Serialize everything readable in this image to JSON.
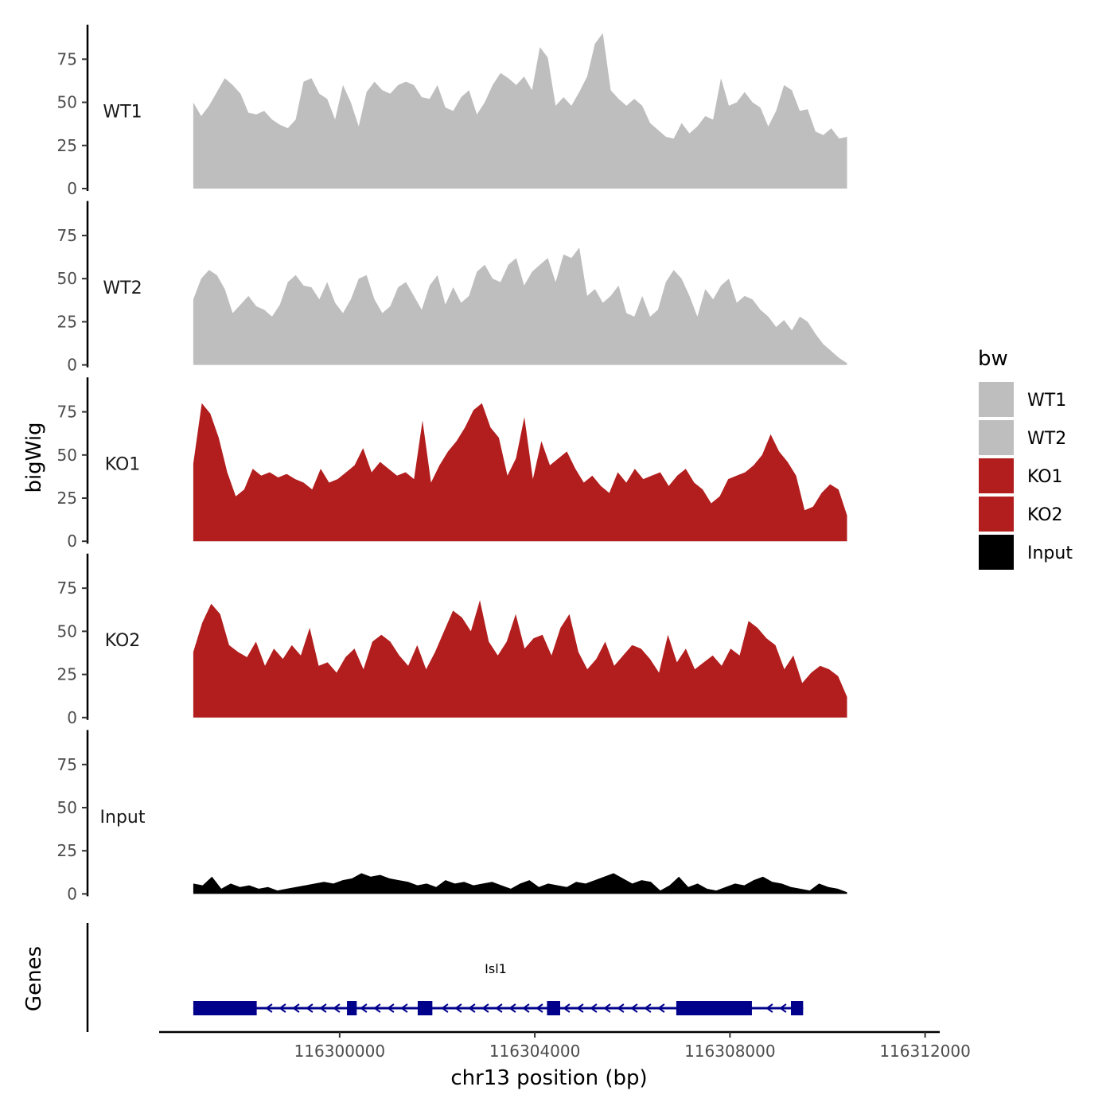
{
  "chart_data": {
    "type": "area",
    "title": "",
    "xlabel": "chr13 position (bp)",
    "ylabel": "bigWig",
    "genes_label": "Genes",
    "xlim": [
      116296300,
      116312300
    ],
    "x_ticks": [
      116300000,
      116304000,
      116308000,
      116312000
    ],
    "x_tick_labels": [
      "116300000",
      "116304000",
      "116308000",
      "116312000"
    ],
    "ylim": [
      0,
      95
    ],
    "y_ticks": [
      0,
      25,
      50,
      75
    ],
    "y_tick_labels": [
      "0",
      "25",
      "50",
      "75"
    ],
    "region": [
      116297000,
      116310400
    ],
    "legend": {
      "title": "bw",
      "entries": [
        {
          "label": "WT1",
          "color": "#BEBEBE"
        },
        {
          "label": "WT2",
          "color": "#BEBEBE"
        },
        {
          "label": "KO1",
          "color": "#B21E1E"
        },
        {
          "label": "KO2",
          "color": "#B21E1E"
        },
        {
          "label": "Input",
          "color": "#000000"
        }
      ]
    },
    "series": [
      {
        "name": "WT1",
        "color": "#BEBEBE",
        "values": [
          50,
          42,
          48,
          56,
          64,
          60,
          55,
          44,
          43,
          45,
          40,
          37,
          35,
          40,
          62,
          64,
          55,
          52,
          40,
          60,
          50,
          36,
          56,
          62,
          57,
          55,
          60,
          62,
          60,
          53,
          52,
          60,
          47,
          45,
          53,
          57,
          43,
          50,
          60,
          67,
          64,
          60,
          65,
          57,
          82,
          76,
          48,
          53,
          48,
          56,
          65,
          84,
          90,
          57,
          52,
          48,
          52,
          48,
          38,
          34,
          30,
          29,
          38,
          32,
          36,
          42,
          40,
          64,
          48,
          50,
          56,
          50,
          47,
          36,
          45,
          60,
          57,
          45,
          46,
          33,
          31,
          35,
          29,
          30
        ]
      },
      {
        "name": "WT2",
        "color": "#BEBEBE",
        "values": [
          38,
          50,
          55,
          52,
          44,
          30,
          35,
          40,
          34,
          32,
          28,
          35,
          48,
          52,
          46,
          45,
          38,
          48,
          36,
          30,
          38,
          50,
          52,
          38,
          30,
          34,
          45,
          48,
          40,
          32,
          46,
          52,
          35,
          45,
          36,
          40,
          54,
          58,
          50,
          48,
          58,
          62,
          46,
          54,
          58,
          62,
          48,
          64,
          62,
          68,
          40,
          44,
          36,
          40,
          46,
          30,
          28,
          40,
          28,
          32,
          48,
          55,
          50,
          40,
          28,
          44,
          38,
          46,
          50,
          36,
          40,
          38,
          32,
          28,
          22,
          26,
          20,
          28,
          25,
          18,
          12,
          8,
          4,
          1
        ]
      },
      {
        "name": "KO1",
        "color": "#B21E1E",
        "values": [
          45,
          80,
          74,
          60,
          40,
          26,
          30,
          42,
          38,
          40,
          37,
          39,
          36,
          34,
          30,
          42,
          34,
          36,
          40,
          44,
          54,
          40,
          46,
          42,
          38,
          40,
          36,
          70,
          34,
          44,
          52,
          58,
          66,
          76,
          80,
          66,
          60,
          38,
          48,
          72,
          36,
          58,
          44,
          48,
          52,
          42,
          34,
          38,
          32,
          28,
          40,
          34,
          42,
          36,
          38,
          40,
          32,
          38,
          42,
          34,
          30,
          22,
          26,
          36,
          38,
          40,
          44,
          50,
          62,
          52,
          46,
          38,
          18,
          20,
          28,
          33,
          30,
          15
        ]
      },
      {
        "name": "KO2",
        "color": "#B21E1E",
        "values": [
          38,
          55,
          66,
          60,
          42,
          38,
          35,
          44,
          30,
          40,
          34,
          42,
          36,
          52,
          30,
          32,
          26,
          35,
          40,
          28,
          44,
          48,
          44,
          36,
          30,
          42,
          28,
          38,
          50,
          62,
          58,
          50,
          68,
          44,
          36,
          44,
          60,
          40,
          46,
          48,
          36,
          52,
          60,
          38,
          28,
          34,
          44,
          30,
          36,
          42,
          40,
          34,
          26,
          48,
          32,
          40,
          28,
          32,
          36,
          30,
          40,
          36,
          56,
          52,
          46,
          42,
          28,
          36,
          20,
          26,
          30,
          28,
          24,
          12
        ]
      },
      {
        "name": "Input",
        "color": "#000000",
        "values": [
          6,
          5,
          10,
          3,
          6,
          4,
          5,
          3,
          4,
          2,
          3,
          4,
          5,
          6,
          7,
          6,
          8,
          9,
          12,
          10,
          11,
          9,
          8,
          7,
          5,
          6,
          4,
          8,
          6,
          7,
          5,
          6,
          7,
          5,
          3,
          6,
          8,
          4,
          6,
          5,
          4,
          7,
          6,
          8,
          10,
          12,
          9,
          6,
          8,
          7,
          2,
          5,
          10,
          4,
          6,
          3,
          2,
          4,
          6,
          5,
          8,
          10,
          7,
          6,
          4,
          3,
          2,
          6,
          4,
          3,
          1
        ]
      }
    ],
    "gene": {
      "name": "Isl1",
      "strand": "-",
      "color": "#00008B",
      "start": 116297000,
      "end": 116309500,
      "exons": [
        [
          116297000,
          116298300
        ],
        [
          116300150,
          116300350
        ],
        [
          116301600,
          116301900
        ],
        [
          116304250,
          116304520
        ],
        [
          116306900,
          116308450
        ],
        [
          116309250,
          116309500
        ]
      ]
    }
  }
}
